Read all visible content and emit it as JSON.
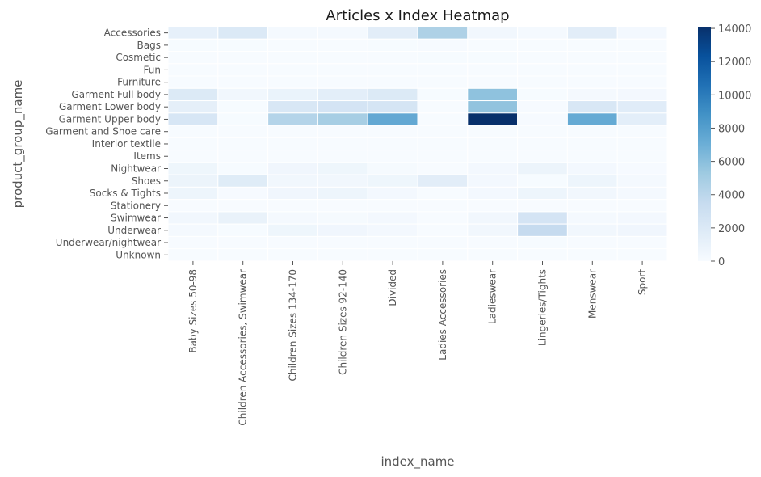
{
  "chart_data": {
    "type": "heatmap",
    "title": "Articles x Index Heatmap",
    "xlabel": "index_name",
    "ylabel": "product_group_name",
    "x_categories": [
      "Baby Sizes 50-98",
      "Children Accessories, Swimwear",
      "Children Sizes 134-170",
      "Children Sizes 92-140",
      "Divided",
      "Ladies Accessories",
      "Ladieswear",
      "Lingeries/Tights",
      "Menswear",
      "Sport"
    ],
    "y_categories": [
      "Accessories",
      "Bags",
      "Cosmetic",
      "Fun",
      "Furniture",
      "Garment Full body",
      "Garment Lower body",
      "Garment Upper body",
      "Garment and Shoe care",
      "Interior textile",
      "Items",
      "Nightwear",
      "Shoes",
      "Socks & Tights",
      "Stationery",
      "Swimwear",
      "Underwear",
      "Underwear/nightwear",
      "Unknown"
    ],
    "values": [
      [
        1200,
        2000,
        200,
        200,
        1500,
        4600,
        400,
        200,
        1500,
        300
      ],
      [
        50,
        50,
        20,
        20,
        50,
        100,
        30,
        10,
        30,
        10
      ],
      [
        0,
        0,
        0,
        0,
        20,
        50,
        50,
        0,
        0,
        0
      ],
      [
        10,
        10,
        10,
        10,
        10,
        10,
        10,
        0,
        10,
        0
      ],
      [
        0,
        0,
        0,
        0,
        10,
        10,
        10,
        0,
        10,
        0
      ],
      [
        1900,
        400,
        900,
        1400,
        1900,
        50,
        5800,
        50,
        200,
        300
      ],
      [
        1300,
        50,
        2200,
        2500,
        2400,
        0,
        5700,
        100,
        2200,
        1600
      ],
      [
        2300,
        50,
        4300,
        4900,
        7400,
        0,
        14100,
        100,
        7300,
        1400
      ],
      [
        10,
        10,
        0,
        0,
        10,
        0,
        10,
        0,
        10,
        0
      ],
      [
        10,
        10,
        0,
        0,
        0,
        0,
        10,
        0,
        0,
        0
      ],
      [
        10,
        10,
        10,
        10,
        10,
        10,
        10,
        0,
        10,
        0
      ],
      [
        600,
        50,
        500,
        600,
        150,
        0,
        300,
        800,
        300,
        100
      ],
      [
        800,
        1700,
        400,
        400,
        600,
        1500,
        300,
        50,
        700,
        200
      ],
      [
        700,
        100,
        500,
        700,
        300,
        10,
        300,
        700,
        400,
        200
      ],
      [
        10,
        10,
        0,
        0,
        10,
        0,
        10,
        0,
        0,
        0
      ],
      [
        400,
        1000,
        200,
        150,
        300,
        0,
        400,
        2500,
        200,
        300
      ],
      [
        200,
        50,
        600,
        500,
        300,
        10,
        400,
        3500,
        400,
        500
      ],
      [
        10,
        10,
        0,
        0,
        10,
        0,
        10,
        50,
        10,
        10
      ],
      [
        10,
        10,
        10,
        10,
        10,
        10,
        10,
        10,
        10,
        10
      ]
    ],
    "colorbar": {
      "min": 0,
      "max": 14100,
      "ticks": [
        0,
        2000,
        4000,
        6000,
        8000,
        10000,
        12000,
        14000
      ]
    },
    "colormap": "Blues",
    "grid": false,
    "legend": "colorbar-right"
  }
}
